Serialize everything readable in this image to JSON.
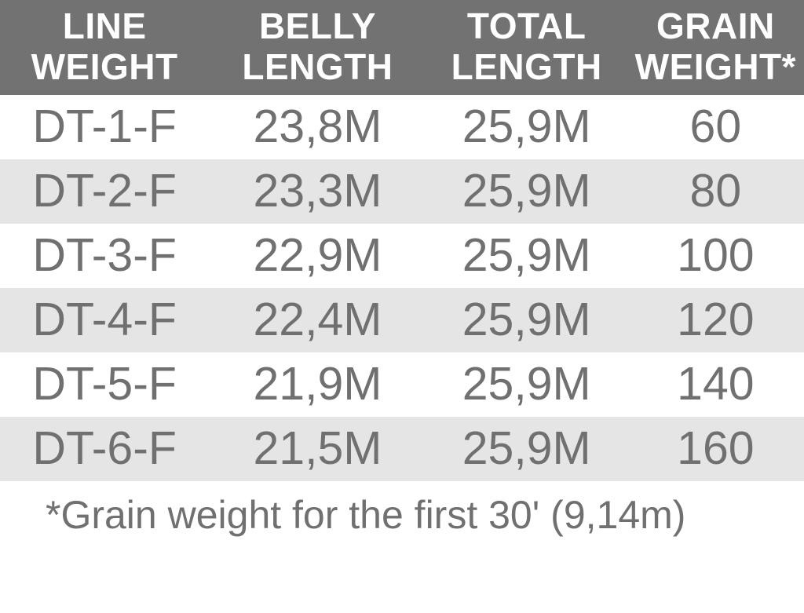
{
  "table": {
    "columns": [
      {
        "label": "LINE\nWEIGHT",
        "width": "26%"
      },
      {
        "label": "BELLY\nLENGTH",
        "width": "27%"
      },
      {
        "label": "TOTAL\nLENGTH",
        "width": "25%"
      },
      {
        "label": "GRAIN\nWEIGHT*",
        "width": "22%"
      }
    ],
    "rows": [
      {
        "cells": [
          "DT-1-F",
          "23,8M",
          "25,9M",
          "60"
        ],
        "stripe": false
      },
      {
        "cells": [
          "DT-2-F",
          "23,3M",
          "25,9M",
          "80"
        ],
        "stripe": true
      },
      {
        "cells": [
          "DT-3-F",
          "22,9M",
          "25,9M",
          "100"
        ],
        "stripe": false
      },
      {
        "cells": [
          "DT-4-F",
          "22,4M",
          "25,9M",
          "120"
        ],
        "stripe": true
      },
      {
        "cells": [
          "DT-5-F",
          "21,9M",
          "25,9M",
          "140"
        ],
        "stripe": false
      },
      {
        "cells": [
          "DT-6-F",
          "21,5M",
          "25,9M",
          "160"
        ],
        "stripe": true
      }
    ],
    "header_bg": "#727272",
    "header_color": "#ffffff",
    "cell_color": "#707070",
    "stripe_bg": "#e5e5e5",
    "plain_bg": "#ffffff",
    "header_fontsize": 46,
    "cell_fontsize": 59
  },
  "footnote": "*Grain weight for the first 30' (9,14m)"
}
